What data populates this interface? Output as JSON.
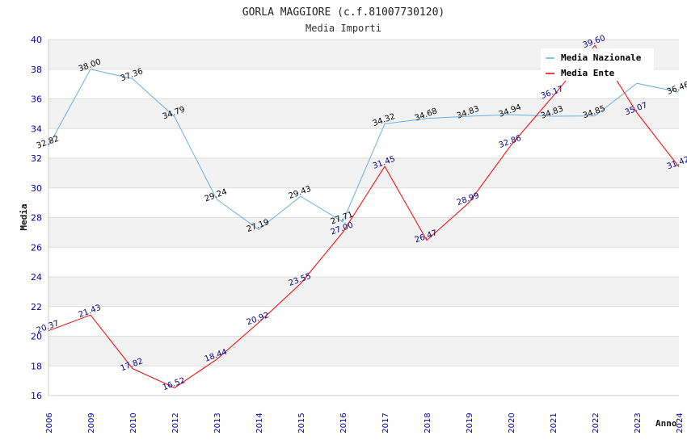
{
  "chart_data": {
    "type": "line",
    "title": "GORLA MAGGIORE (c.f.81007730120)",
    "subtitle": "Media Importi",
    "xlabel": "Anno",
    "ylabel": "Media",
    "ylim": [
      16,
      40
    ],
    "yticks": [
      "16",
      "18",
      "20",
      "22",
      "24",
      "26",
      "28",
      "30",
      "32",
      "34",
      "36",
      "38",
      "40"
    ],
    "categories": [
      "2006",
      "2009",
      "2010",
      "2012",
      "2013",
      "2014",
      "2015",
      "2016",
      "2017",
      "2018",
      "2019",
      "2020",
      "2021",
      "2022",
      "2023",
      "2024"
    ],
    "series": [
      {
        "name": "Media Nazionale",
        "color": "#6aaee0",
        "label_color": "#000000",
        "values": [
          32.82,
          38.0,
          37.36,
          34.79,
          29.24,
          27.19,
          29.43,
          27.71,
          34.32,
          34.68,
          34.83,
          34.94,
          34.83,
          34.85,
          37.05,
          36.46
        ],
        "labels": [
          "32.82",
          "38.00",
          "37.36",
          "34.79",
          "29.24",
          "27.19",
          "29.43",
          "27.71",
          "34.32",
          "34.68",
          "34.83",
          "34.94",
          "34.83",
          "34.85",
          "",
          "36.46"
        ]
      },
      {
        "name": "Media Ente",
        "color": "#ee0000",
        "label_color": "#00008b",
        "values": [
          20.37,
          21.43,
          17.82,
          16.52,
          18.44,
          20.92,
          23.55,
          27.0,
          31.45,
          26.47,
          28.99,
          32.86,
          36.17,
          39.6,
          35.07,
          31.42
        ],
        "labels": [
          "20.37",
          "21.43",
          "17.82",
          "16.52",
          "18.44",
          "20.92",
          "23.55",
          "27.00",
          "31.45",
          "26.47",
          "28.99",
          "32.86",
          "36.17",
          "39.60",
          "35.07",
          "31.42"
        ]
      }
    ],
    "legend": "top-right",
    "grid": true
  }
}
